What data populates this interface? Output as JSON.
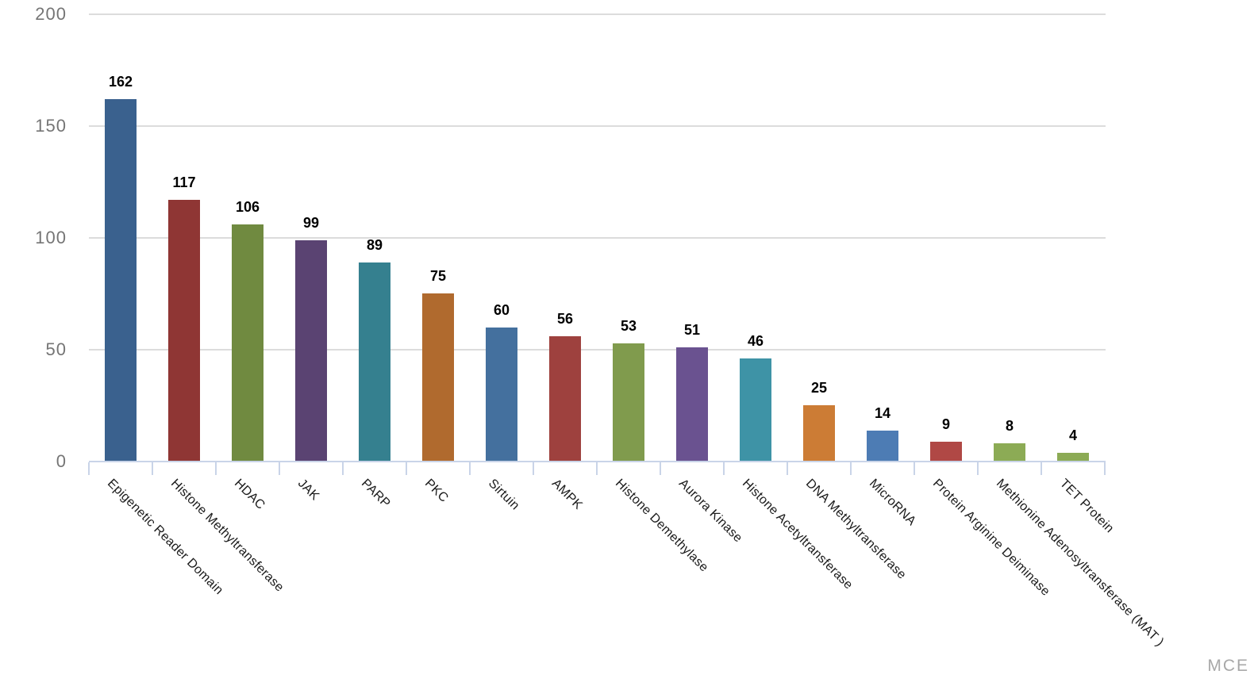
{
  "chart_data": {
    "type": "bar",
    "title": "",
    "xlabel": "",
    "ylabel": "",
    "categories": [
      "Epigenetic Reader Domain",
      "Histone Methyltransferase",
      "HDAC",
      "JAK",
      "PARP",
      "PKC",
      "Sirtuin",
      "AMPK",
      "Histone Demethylase",
      "Aurora Kinase",
      "Histone Acetyltransferase",
      "DNA Methyltransferase",
      "MicroRNA",
      "Protein Arginine Deiminase",
      "Methionine Adenosyltransferase (MAT )",
      "TET Protein"
    ],
    "values": [
      162,
      117,
      106,
      99,
      89,
      75,
      60,
      56,
      53,
      51,
      46,
      25,
      14,
      9,
      8,
      4
    ],
    "bar_colors": [
      "#3A618E",
      "#8F3634",
      "#708A40",
      "#5A4372",
      "#35808F",
      "#B06A2E",
      "#44709E",
      "#9E413E",
      "#809B4D",
      "#6A5290",
      "#3E93A6",
      "#CC7C35",
      "#4D7CB4",
      "#B04845",
      "#8CAB55",
      "#8CAB55"
    ],
    "ylim": [
      0,
      200
    ],
    "yticks": [
      0,
      50,
      100,
      150,
      200
    ],
    "grid": true,
    "legend": false,
    "value_labels": true,
    "x_label_rotation_deg": 45,
    "watermark": "MCE"
  },
  "colors": {
    "background": "#FFFFFF",
    "axis": "#C9D4E8",
    "grid": "#DCDCDC",
    "y_tick_label": "#757575",
    "x_tick_label": "#1A1A1A",
    "value_label": "#000000",
    "watermark": "#A8A8A8"
  }
}
